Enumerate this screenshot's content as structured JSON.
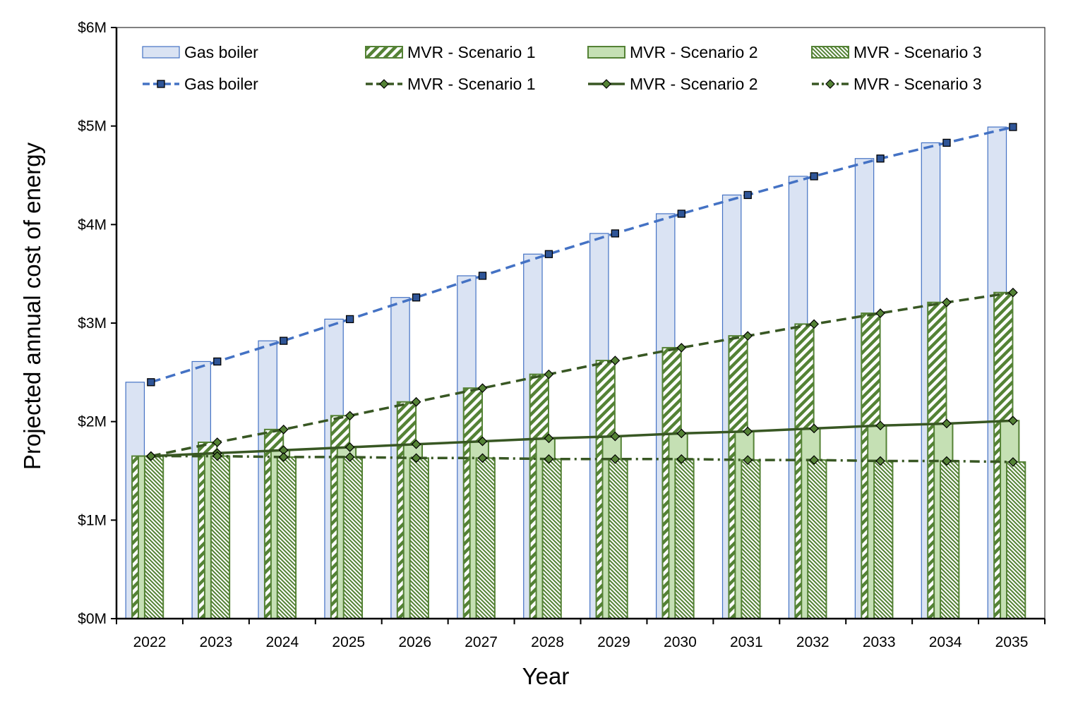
{
  "chart_data": {
    "type": "bar",
    "title": "",
    "xlabel": "Year",
    "ylabel": "Projected annual cost of energy",
    "ylim": [
      0,
      6
    ],
    "y_unit": "$M",
    "y_ticks": [
      0,
      1,
      2,
      3,
      4,
      5,
      6
    ],
    "y_tick_labels": [
      "$0M",
      "$1M",
      "$2M",
      "$3M",
      "$4M",
      "$5M",
      "$6M"
    ],
    "categories": [
      "2022",
      "2023",
      "2024",
      "2025",
      "2026",
      "2027",
      "2028",
      "2029",
      "2030",
      "2031",
      "2032",
      "2033",
      "2034",
      "2035"
    ],
    "grid": false,
    "legend_position": "top",
    "bar_series": [
      {
        "name": "Gas boiler",
        "legend_label": "Gas boiler",
        "style": "solid-blue",
        "values": [
          2.4,
          2.61,
          2.82,
          3.04,
          3.26,
          3.48,
          3.7,
          3.91,
          4.11,
          4.3,
          4.49,
          4.67,
          4.83,
          4.99
        ]
      },
      {
        "name": "MVR - Scenario 1",
        "legend_label": "MVR - Scenario 1",
        "style": "diagonal-hatch",
        "values": [
          1.65,
          1.79,
          1.92,
          2.06,
          2.2,
          2.34,
          2.48,
          2.62,
          2.75,
          2.87,
          2.99,
          3.1,
          3.21,
          3.31
        ]
      },
      {
        "name": "MVR - Scenario 2",
        "legend_label": "MVR - Scenario 2",
        "style": "solid-green",
        "values": [
          1.65,
          1.68,
          1.71,
          1.74,
          1.77,
          1.8,
          1.83,
          1.85,
          1.88,
          1.9,
          1.93,
          1.96,
          1.98,
          2.01
        ]
      },
      {
        "name": "MVR - Scenario 3",
        "legend_label": "MVR - Scenario 3",
        "style": "dense-hatch",
        "values": [
          1.65,
          1.65,
          1.64,
          1.64,
          1.63,
          1.63,
          1.62,
          1.62,
          1.62,
          1.61,
          1.61,
          1.6,
          1.6,
          1.59
        ]
      }
    ],
    "line_series": [
      {
        "name": "Gas boiler",
        "legend_label": "Gas boiler",
        "style": "dashed",
        "marker": "square",
        "values": [
          2.4,
          2.61,
          2.82,
          3.04,
          3.26,
          3.48,
          3.7,
          3.91,
          4.11,
          4.3,
          4.49,
          4.67,
          4.83,
          4.99
        ]
      },
      {
        "name": "MVR - Scenario 1",
        "legend_label": "MVR - Scenario 1",
        "style": "dashed",
        "marker": "diamond",
        "values": [
          1.65,
          1.79,
          1.92,
          2.06,
          2.2,
          2.34,
          2.48,
          2.62,
          2.75,
          2.87,
          2.99,
          3.1,
          3.21,
          3.31
        ]
      },
      {
        "name": "MVR - Scenario 2",
        "legend_label": "MVR - Scenario 2",
        "style": "solid",
        "marker": "diamond",
        "values": [
          1.65,
          1.68,
          1.71,
          1.74,
          1.77,
          1.8,
          1.83,
          1.85,
          1.88,
          1.9,
          1.93,
          1.96,
          1.98,
          2.01
        ]
      },
      {
        "name": "MVR - Scenario 3",
        "legend_label": "MVR - Scenario 3",
        "style": "dash-dot",
        "marker": "diamond",
        "values": [
          1.65,
          1.65,
          1.64,
          1.64,
          1.63,
          1.63,
          1.62,
          1.62,
          1.62,
          1.61,
          1.61,
          1.6,
          1.6,
          1.59
        ]
      }
    ],
    "colors": {
      "gas_fill": "#DAE3F3",
      "gas_edge": "#4472C4",
      "gas_line": "#4472C4",
      "gas_marker": "#2F5597",
      "mvr_fill": "#C5E0B4",
      "mvr_edge": "#548235",
      "mvr_line": "#385723",
      "mvr_marker": "#548235"
    }
  }
}
